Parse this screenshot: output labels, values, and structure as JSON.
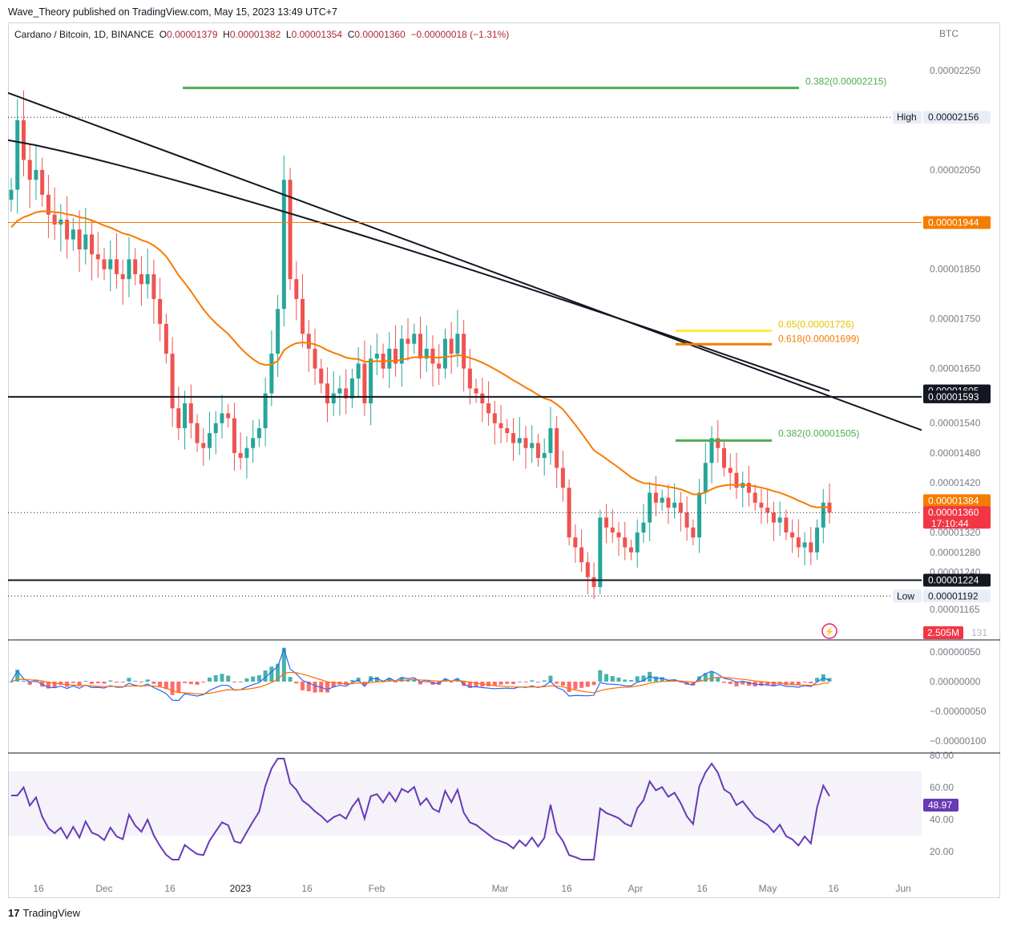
{
  "publisher_line": "Wave_Theory published on TradingView.com, May 15, 2023 13:49 UTC+7",
  "footer_brand": "TradingView",
  "footer_logo": "17",
  "legend": {
    "symbol": "Cardano / Bitcoin, 1D, BINANCE",
    "o_label": "O",
    "o": "0.00001379",
    "h_label": "H",
    "h": "0.00001382",
    "l_label": "L",
    "l": "0.00001354",
    "c_label": "C",
    "c": "0.00001360",
    "change": "−0.00000018 (−1.31%)"
  },
  "colors": {
    "up": "#26a69a",
    "down": "#ef5350",
    "ema": "#f57c00",
    "fib_green": "#4caf50",
    "fib_yellow": "#ffeb3b",
    "fib_orange": "#f57c00",
    "rsi": "#673ab7",
    "macd": "#2962ff",
    "signal": "#ff6d00"
  },
  "chart_data": [
    {
      "type": "candlestick",
      "title": "Cardano / Bitcoin, 1D, BINANCE",
      "currency": "BTC",
      "ylim": [
        1.14e-05,
        2.3e-05
      ],
      "y_ticks": [
        "0.00002250",
        "0.00002050",
        "0.00001850",
        "0.00001750",
        "0.00001650",
        "0.00001540",
        "0.00001480",
        "0.00001420",
        "0.00001320",
        "0.00001280",
        "0.00001240",
        "0.00001165"
      ],
      "x_ticks": [
        "16",
        "Dec",
        "16",
        "2023",
        "16",
        "Feb",
        "Mar",
        "16",
        "Apr",
        "16",
        "May",
        "16",
        "Jun"
      ],
      "price_labels": [
        {
          "text": "High",
          "value": "0.00002156",
          "kind": "high"
        },
        {
          "text": "",
          "value": "0.00001944",
          "kind": "hline-orange"
        },
        {
          "text": "",
          "value": "0.00001605",
          "kind": "sma"
        },
        {
          "text": "",
          "value": "0.00001593",
          "kind": "support"
        },
        {
          "text": "",
          "value": "0.00001384",
          "kind": "ema"
        },
        {
          "text": "",
          "value": "0.00001360",
          "kind": "last",
          "countdown": "17:10:44"
        },
        {
          "text": "",
          "value": "0.00001224",
          "kind": "support"
        },
        {
          "text": "Low",
          "value": "0.00001192",
          "kind": "low"
        }
      ],
      "fib_levels": [
        {
          "label": "0.382(0.00002215)",
          "value": 2.215e-05,
          "color": "#4caf50"
        },
        {
          "label": "0.65(0.00001726)",
          "value": 1.726e-05,
          "color": "#ffeb3b"
        },
        {
          "label": "0.618(0.00001699)",
          "value": 1.699e-05,
          "color": "#f57c00"
        },
        {
          "label": "0.382(0.00001505)",
          "value": 1.505e-05,
          "color": "#4caf50"
        }
      ],
      "volume_label": "2.505M",
      "volume_label_suffix": "131",
      "closes": [
        2.01e-05,
        2.15e-05,
        2.07e-05,
        2.03e-05,
        2.05e-05,
        2e-05,
        1.96e-05,
        1.94e-05,
        1.95e-05,
        1.91e-05,
        1.93e-05,
        1.89e-05,
        1.92e-05,
        1.88e-05,
        1.87e-05,
        1.85e-05,
        1.87e-05,
        1.84e-05,
        1.83e-05,
        1.87e-05,
        1.84e-05,
        1.82e-05,
        1.84e-05,
        1.79e-05,
        1.74e-05,
        1.68e-05,
        1.57e-05,
        1.53e-05,
        1.58e-05,
        1.54e-05,
        1.5e-05,
        1.49e-05,
        1.52e-05,
        1.54e-05,
        1.56e-05,
        1.55e-05,
        1.48e-05,
        1.47e-05,
        1.49e-05,
        1.51e-05,
        1.53e-05,
        1.6e-05,
        1.68e-05,
        1.77e-05,
        2.03e-05,
        1.83e-05,
        1.79e-05,
        1.72e-05,
        1.69e-05,
        1.65e-05,
        1.62e-05,
        1.58e-05,
        1.6e-05,
        1.61e-05,
        1.59e-05,
        1.63e-05,
        1.66e-05,
        1.58e-05,
        1.67e-05,
        1.68e-05,
        1.65e-05,
        1.69e-05,
        1.66e-05,
        1.71e-05,
        1.7e-05,
        1.72e-05,
        1.67e-05,
        1.69e-05,
        1.66e-05,
        1.65e-05,
        1.71e-05,
        1.68e-05,
        1.72e-05,
        1.65e-05,
        1.61e-05,
        1.6e-05,
        1.58e-05,
        1.56e-05,
        1.54e-05,
        1.53e-05,
        1.52e-05,
        1.5e-05,
        1.51e-05,
        1.49e-05,
        1.5e-05,
        1.47e-05,
        1.48e-05,
        1.53e-05,
        1.45e-05,
        1.41e-05,
        1.31e-05,
        1.29e-05,
        1.26e-05,
        1.23e-05,
        1.21e-05,
        1.35e-05,
        1.33e-05,
        1.32e-05,
        1.31e-05,
        1.29e-05,
        1.28e-05,
        1.32e-05,
        1.34e-05,
        1.4e-05,
        1.38e-05,
        1.39e-05,
        1.37e-05,
        1.38e-05,
        1.36e-05,
        1.33e-05,
        1.31e-05,
        1.4e-05,
        1.46e-05,
        1.51e-05,
        1.49e-05,
        1.45e-05,
        1.44e-05,
        1.41e-05,
        1.42e-05,
        1.4e-05,
        1.38e-05,
        1.37e-05,
        1.36e-05,
        1.34e-05,
        1.35e-05,
        1.32e-05,
        1.31e-05,
        1.29e-05,
        1.3e-05,
        1.28e-05,
        1.33e-05,
        1.38e-05,
        1.36e-05
      ]
    },
    {
      "type": "bar",
      "title": "MACD",
      "ylim": [
        -1.2e-07,
        7e-08
      ],
      "y_ticks": [
        "0.00000050",
        "0.00000000",
        "−0.00000050",
        "−0.00000100"
      ]
    },
    {
      "type": "line",
      "title": "RSI",
      "ylim": [
        15,
        80
      ],
      "y_ticks": [
        "80.00",
        "60.00",
        "40.00",
        "20.00"
      ],
      "band": [
        30,
        70
      ],
      "last_value": "48.97"
    }
  ]
}
